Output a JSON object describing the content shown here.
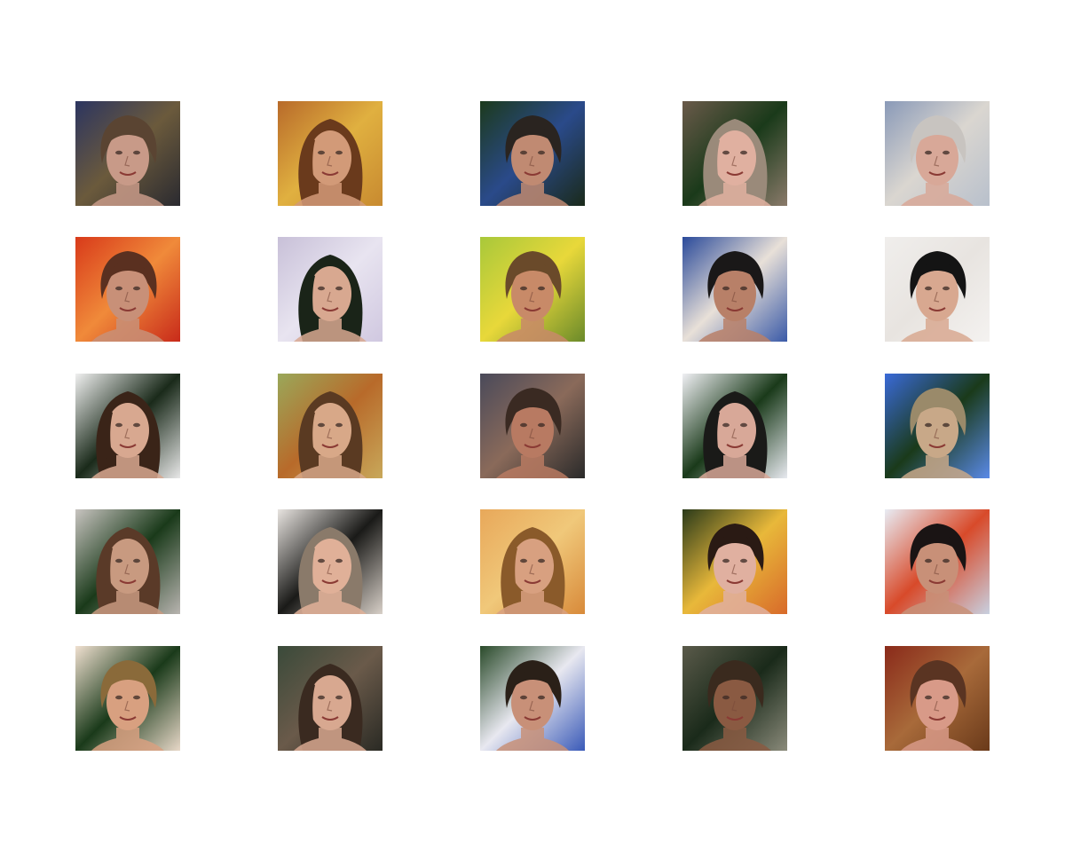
{
  "figure": {
    "rows": 5,
    "cols": 5,
    "background": "#ffffff",
    "images": [
      {
        "subject": "face",
        "bg": [
          "#2c3560",
          "#6b5a3c",
          "#2a2a30"
        ],
        "skin": "#c89a88",
        "hair": "#5a4432",
        "hair_shape": "short"
      },
      {
        "subject": "face",
        "bg": [
          "#b86a2a",
          "#e0b040",
          "#c88a30"
        ],
        "skin": "#d29a78",
        "hair": "#6a3a1c",
        "hair_shape": "long"
      },
      {
        "subject": "face",
        "bg": [
          "#1c3a1c",
          "#2a4a8a",
          "#1a2a1a"
        ],
        "skin": "#c08a72",
        "hair": "#2a2420",
        "hair_shape": "short"
      },
      {
        "subject": "face",
        "bg": [
          "#6a5a4a",
          "#1a3a1a",
          "#8a7a6a"
        ],
        "skin": "#e0b0a0",
        "hair": "#9a8a7a",
        "hair_shape": "long"
      },
      {
        "subject": "face",
        "bg": [
          "#8a9ab8",
          "#dad6d0",
          "#b8c0cc"
        ],
        "skin": "#d8a898",
        "hair": "#c8c4c0",
        "hair_shape": "short"
      },
      {
        "subject": "face",
        "bg": [
          "#d83a1a",
          "#f08a3a",
          "#c82a1a"
        ],
        "skin": "#c89078",
        "hair": "#5a3020",
        "hair_shape": "short"
      },
      {
        "subject": "face",
        "bg": [
          "#c8c0d8",
          "#e8e4f0",
          "#d0c8e0"
        ],
        "skin": "#d8a890",
        "hair": "#1a2418",
        "hair_shape": "long"
      },
      {
        "subject": "face",
        "bg": [
          "#a8c83a",
          "#e8d83a",
          "#6a8a2a"
        ],
        "skin": "#c88a68",
        "hair": "#6a4a2a",
        "hair_shape": "short"
      },
      {
        "subject": "face",
        "bg": [
          "#2a4a9a",
          "#e8e0d8",
          "#3a5aa8"
        ],
        "skin": "#b88068",
        "hair": "#1a1818",
        "hair_shape": "short"
      },
      {
        "subject": "face",
        "bg": [
          "#f0eeec",
          "#e8e4e0",
          "#f4f2f0"
        ],
        "skin": "#d8a890",
        "hair": "#141414",
        "hair_shape": "short"
      },
      {
        "subject": "face",
        "bg": [
          "#f0f0f0",
          "#1a2a1a",
          "#e8e8e8"
        ],
        "skin": "#d8a890",
        "hair": "#3a2418",
        "hair_shape": "long"
      },
      {
        "subject": "face",
        "bg": [
          "#9aa85a",
          "#b86a2a",
          "#c8a85a"
        ],
        "skin": "#d8a888",
        "hair": "#5a3a22",
        "hair_shape": "long"
      },
      {
        "subject": "face",
        "bg": [
          "#4a4a5a",
          "#8a6a5a",
          "#2a2a2a"
        ],
        "skin": "#b87a62",
        "hair": "#3a2a22",
        "hair_shape": "short"
      },
      {
        "subject": "face",
        "bg": [
          "#f0f0f4",
          "#1a3a1a",
          "#e8eaf0"
        ],
        "skin": "#d8a898",
        "hair": "#1a1a18",
        "hair_shape": "long"
      },
      {
        "subject": "face",
        "bg": [
          "#3a6ad8",
          "#1a3a1a",
          "#5a8ae8"
        ],
        "skin": "#c8a888",
        "hair": "#9a8a6a",
        "hair_shape": "short"
      },
      {
        "subject": "face",
        "bg": [
          "#c8c4c0",
          "#1a3a1a",
          "#b8b4b0"
        ],
        "skin": "#c89a80",
        "hair": "#5a3a28",
        "hair_shape": "long"
      },
      {
        "subject": "face",
        "bg": [
          "#e8e4e0",
          "#1a1a18",
          "#d8d0c8"
        ],
        "skin": "#e0b098",
        "hair": "#8a7a6a",
        "hair_shape": "long"
      },
      {
        "subject": "face",
        "bg": [
          "#e8a85a",
          "#f0c87a",
          "#d88a3a"
        ],
        "skin": "#d8a080",
        "hair": "#8a5a2a",
        "hair_shape": "long"
      },
      {
        "subject": "face",
        "bg": [
          "#2a3a1a",
          "#e8b83a",
          "#d86a2a"
        ],
        "skin": "#e0b0a0",
        "hair": "#2a1a14",
        "hair_shape": "short"
      },
      {
        "subject": "face",
        "bg": [
          "#e8ecf4",
          "#d84a2a",
          "#c8d0e0"
        ],
        "skin": "#c89078",
        "hair": "#1a1414",
        "hair_shape": "short"
      },
      {
        "subject": "face",
        "bg": [
          "#f0e0d0",
          "#1a3a1a",
          "#e8d8c8"
        ],
        "skin": "#d8a080",
        "hair": "#8a6a3a",
        "hair_shape": "short"
      },
      {
        "subject": "face",
        "bg": [
          "#3a4a3a",
          "#6a5a4a",
          "#2a2a24"
        ],
        "skin": "#d8a890",
        "hair": "#3a2a20",
        "hair_shape": "long"
      },
      {
        "subject": "face",
        "bg": [
          "#2a4a2a",
          "#e8e8f0",
          "#3a5ab8"
        ],
        "skin": "#c89078",
        "hair": "#2a2018",
        "hair_shape": "short"
      },
      {
        "subject": "face",
        "bg": [
          "#5a5a4a",
          "#1a2a1a",
          "#8a8a7a"
        ],
        "skin": "#8a5a42",
        "hair": "#3a2a1e",
        "hair_shape": "short"
      },
      {
        "subject": "face",
        "bg": [
          "#8a2a1a",
          "#a86a3a",
          "#6a3a1a"
        ],
        "skin": "#d89a88",
        "hair": "#5a3422",
        "hair_shape": "short"
      }
    ]
  }
}
